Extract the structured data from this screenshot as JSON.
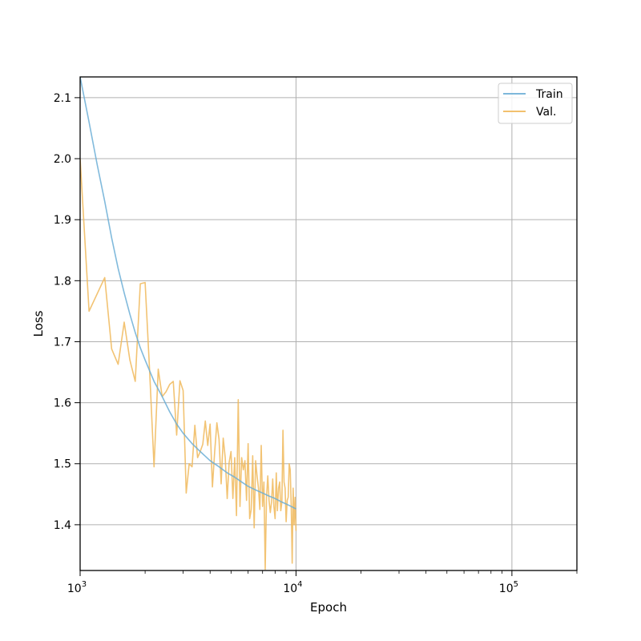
{
  "chart_data": {
    "type": "line",
    "title": "",
    "xlabel": "Epoch",
    "ylabel": "Loss",
    "x_scale": "log",
    "xlim": [
      1000,
      200000
    ],
    "ylim": [
      1.325,
      2.134
    ],
    "grid": true,
    "legend_position": "top-right",
    "x_ticks": [
      {
        "value": 1000,
        "base": "10",
        "exp": "3"
      },
      {
        "value": 10000,
        "base": "10",
        "exp": "4"
      },
      {
        "value": 100000,
        "base": "10",
        "exp": "5"
      }
    ],
    "y_ticks": [
      {
        "value": 1.4,
        "label": "1.4"
      },
      {
        "value": 1.5,
        "label": "1.5"
      },
      {
        "value": 1.6,
        "label": "1.6"
      },
      {
        "value": 1.7,
        "label": "1.7"
      },
      {
        "value": 1.8,
        "label": "1.8"
      },
      {
        "value": 1.9,
        "label": "1.9"
      },
      {
        "value": 2.0,
        "label": "2.0"
      },
      {
        "value": 2.1,
        "label": "2.1"
      }
    ],
    "series": [
      {
        "name": "Train",
        "color": "#6baed6",
        "x": [
          1000,
          1100,
          1200,
          1300,
          1400,
          1500,
          1600,
          1700,
          1800,
          1900,
          2000,
          2200,
          2400,
          2600,
          2800,
          3000,
          3300,
          3600,
          4000,
          4400,
          4800,
          5200,
          5600,
          6000,
          6500,
          7000,
          7500,
          8000,
          8500,
          9000,
          9500,
          10000
        ],
        "y": [
          2.134,
          2.06,
          1.99,
          1.93,
          1.87,
          1.82,
          1.78,
          1.745,
          1.715,
          1.69,
          1.67,
          1.635,
          1.61,
          1.585,
          1.565,
          1.55,
          1.533,
          1.52,
          1.505,
          1.495,
          1.485,
          1.478,
          1.47,
          1.463,
          1.457,
          1.452,
          1.447,
          1.443,
          1.438,
          1.434,
          1.43,
          1.426
        ]
      },
      {
        "name": "Val.",
        "color": "#f0b85a",
        "x": [
          1000,
          1100,
          1300,
          1400,
          1500,
          1600,
          1700,
          1800,
          1900,
          2000,
          2100,
          2200,
          2300,
          2400,
          2500,
          2600,
          2700,
          2800,
          2900,
          3000,
          3100,
          3200,
          3300,
          3400,
          3500,
          3600,
          3700,
          3800,
          3900,
          4000,
          4100,
          4200,
          4300,
          4400,
          4500,
          4600,
          4700,
          4800,
          4900,
          5000,
          5100,
          5200,
          5300,
          5400,
          5500,
          5600,
          5700,
          5800,
          5900,
          6000,
          6100,
          6200,
          6300,
          6400,
          6500,
          6600,
          6700,
          6800,
          6900,
          7000,
          7100,
          7200,
          7300,
          7400,
          7500,
          7600,
          7700,
          7800,
          7900,
          8000,
          8100,
          8200,
          8300,
          8400,
          8500,
          8600,
          8700,
          8800,
          8900,
          9000,
          9100,
          9200,
          9300,
          9400,
          9500,
          9600,
          9700,
          9800,
          9900,
          10000
        ],
        "y": [
          2.0,
          1.75,
          1.805,
          1.688,
          1.663,
          1.732,
          1.67,
          1.635,
          1.795,
          1.797,
          1.65,
          1.495,
          1.655,
          1.61,
          1.618,
          1.63,
          1.635,
          1.547,
          1.636,
          1.62,
          1.452,
          1.5,
          1.495,
          1.563,
          1.51,
          1.52,
          1.532,
          1.57,
          1.53,
          1.565,
          1.462,
          1.52,
          1.567,
          1.54,
          1.467,
          1.542,
          1.51,
          1.443,
          1.502,
          1.52,
          1.443,
          1.51,
          1.415,
          1.605,
          1.43,
          1.51,
          1.49,
          1.505,
          1.44,
          1.533,
          1.41,
          1.425,
          1.513,
          1.395,
          1.505,
          1.48,
          1.46,
          1.425,
          1.53,
          1.43,
          1.47,
          1.327,
          1.445,
          1.48,
          1.44,
          1.42,
          1.437,
          1.475,
          1.43,
          1.41,
          1.485,
          1.423,
          1.46,
          1.47,
          1.423,
          1.437,
          1.555,
          1.47,
          1.46,
          1.405,
          1.44,
          1.445,
          1.5,
          1.49,
          1.432,
          1.337,
          1.46,
          1.4,
          1.445,
          1.39
        ]
      }
    ]
  }
}
